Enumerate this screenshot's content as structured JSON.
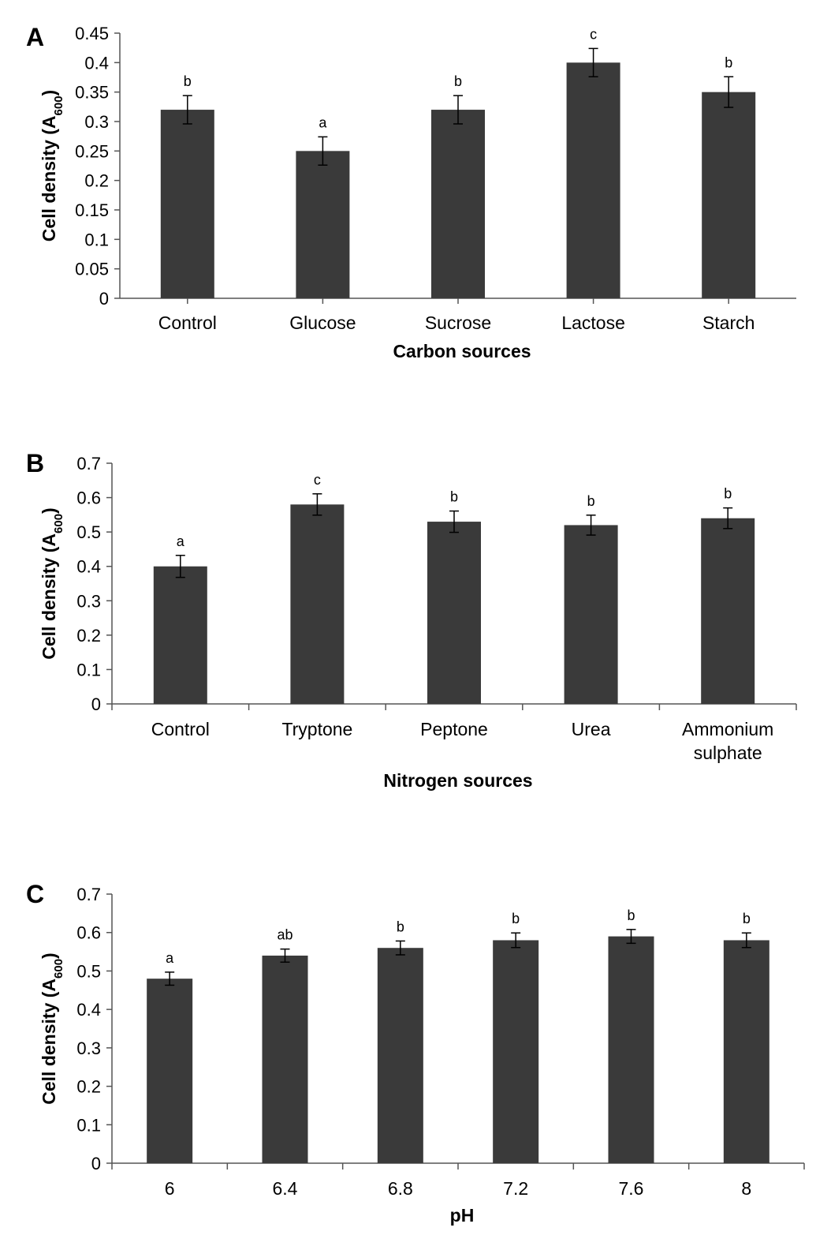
{
  "colors": {
    "bar": "#3a3a3a",
    "axis": "#555555",
    "error": "#000000"
  },
  "chart_data": [
    {
      "type": "bar",
      "panel": "A",
      "categories": [
        [
          "Control"
        ],
        [
          "Glucose"
        ],
        [
          "Sucrose"
        ],
        [
          "Lactose"
        ],
        [
          "Starch"
        ]
      ],
      "values": [
        0.32,
        0.25,
        0.32,
        0.4,
        0.35
      ],
      "errors": [
        0.024,
        0.024,
        0.024,
        0.024,
        0.026
      ],
      "significance": [
        "b",
        "a",
        "b",
        "c",
        "b"
      ],
      "xlabel": "Carbon sources",
      "ylabel": "Cell density (A600)",
      "ylim": [
        0,
        0.45
      ],
      "yticks": [
        "0",
        "0.05",
        "0.1",
        "0.15",
        "0.2",
        "0.25",
        "0.3",
        "0.35",
        "0.4",
        "0.45"
      ],
      "grid": false
    },
    {
      "type": "bar",
      "panel": "B",
      "categories": [
        [
          "Control"
        ],
        [
          "Tryptone"
        ],
        [
          "Peptone"
        ],
        [
          "Urea"
        ],
        [
          "Ammonium",
          "sulphate"
        ]
      ],
      "values": [
        0.4,
        0.58,
        0.53,
        0.52,
        0.54
      ],
      "errors": [
        0.032,
        0.031,
        0.031,
        0.029,
        0.03
      ],
      "significance": [
        "a",
        "c",
        "b",
        "b",
        "b"
      ],
      "xlabel": "Nitrogen sources",
      "ylabel": "Cell density (A600)",
      "ylim": [
        0,
        0.7
      ],
      "yticks": [
        "0",
        "0.1",
        "0.2",
        "0.3",
        "0.4",
        "0.5",
        "0.6",
        "0.7"
      ],
      "grid": false
    },
    {
      "type": "bar",
      "panel": "C",
      "categories": [
        [
          "6"
        ],
        [
          "6.4"
        ],
        [
          "6.8"
        ],
        [
          "7.2"
        ],
        [
          "7.6"
        ],
        [
          "8"
        ]
      ],
      "values": [
        0.48,
        0.54,
        0.56,
        0.58,
        0.59,
        0.58
      ],
      "errors": [
        0.017,
        0.017,
        0.018,
        0.019,
        0.018,
        0.019
      ],
      "significance": [
        "a",
        "ab",
        "b",
        "b",
        "b",
        "b"
      ],
      "xlabel": "pH",
      "ylabel": "Cell density (A600)",
      "ylim": [
        0,
        0.7
      ],
      "yticks": [
        "0",
        "0.1",
        "0.2",
        "0.3",
        "0.4",
        "0.5",
        "0.6",
        "0.7"
      ],
      "grid": false
    }
  ]
}
